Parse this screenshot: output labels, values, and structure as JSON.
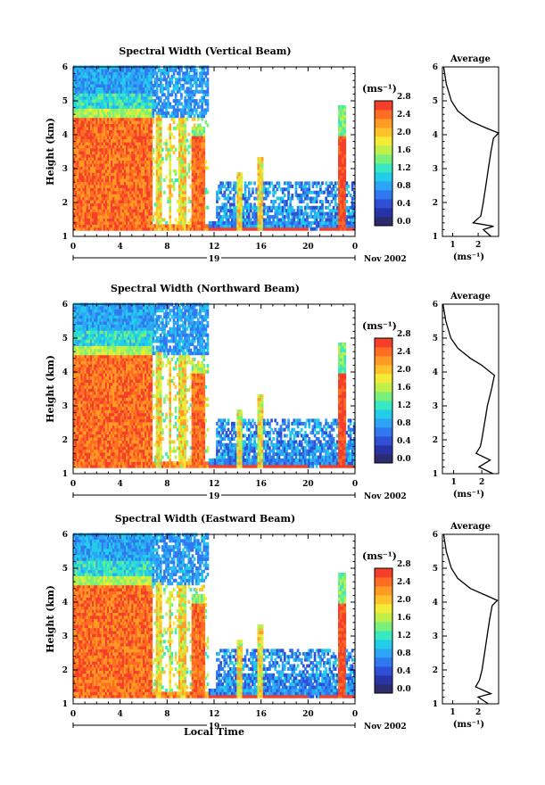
{
  "date_label": "Nov 2002",
  "day_label": "19",
  "time_label": "Local Time",
  "panels": [
    {
      "title": "Spectral Width (Vertical Beam)"
    },
    {
      "title": "Spectral Width (Northward Beam)"
    },
    {
      "title": "Spectral Width (Eastward Beam)"
    }
  ],
  "colorbar": {
    "unit": "(ms⁻¹)",
    "tick_labels": [
      "0.0",
      "0.4",
      "0.8",
      "1.2",
      "1.6",
      "2.0",
      "2.4",
      "2.8"
    ],
    "colors": [
      "#2b2b6e",
      "#2833a8",
      "#2e4fd6",
      "#2f78f0",
      "#2ea4f7",
      "#22cde8",
      "#37e8c0",
      "#79f07c",
      "#bff04a",
      "#f2ec36",
      "#ffc22a",
      "#ff9a25",
      "#ff6d22",
      "#f53f2b"
    ]
  },
  "average": {
    "title": "Average",
    "xlabel": "(ms⁻¹)",
    "xticks": [
      "1",
      "2"
    ]
  },
  "chart_data": [
    {
      "type": "heatmap",
      "title": "Spectral Width (Vertical Beam)",
      "xlabel": "Local Time",
      "ylabel": "Height (km)",
      "x_ticks": [
        "0",
        "4",
        "8",
        "12",
        "16",
        "20",
        "0"
      ],
      "y_ticks": [
        "1",
        "2",
        "3",
        "4",
        "5",
        "6"
      ],
      "xlim": [
        0,
        24
      ],
      "ylim": [
        1,
        6
      ],
      "colorscale_range": [
        0.0,
        2.8
      ],
      "colorbar_label": "(ms⁻¹)",
      "profile": {
        "title": "Average",
        "xlim": [
          0.6,
          2.8
        ],
        "height_km": [
          1.0,
          1.2,
          1.3,
          1.4,
          1.6,
          1.8,
          2.0,
          2.5,
          3.0,
          3.5,
          3.9,
          4.05,
          4.2,
          4.4,
          4.7,
          5.0,
          5.5,
          6.0
        ],
        "width_ms": [
          2.5,
          2.2,
          2.6,
          1.8,
          2.1,
          2.15,
          2.2,
          2.3,
          2.4,
          2.5,
          2.6,
          2.8,
          2.3,
          1.7,
          1.2,
          0.95,
          0.75,
          0.65
        ]
      }
    },
    {
      "type": "heatmap",
      "title": "Spectral Width (Northward Beam)",
      "xlabel": "Local Time",
      "ylabel": "Height (km)",
      "x_ticks": [
        "0",
        "4",
        "8",
        "12",
        "16",
        "20",
        "0"
      ],
      "y_ticks": [
        "1",
        "2",
        "3",
        "4",
        "5",
        "6"
      ],
      "xlim": [
        0,
        24
      ],
      "ylim": [
        1,
        6
      ],
      "colorscale_range": [
        0.0,
        2.8
      ],
      "colorbar_label": "(ms⁻¹)",
      "profile": {
        "title": "Average",
        "xlim": [
          0.6,
          2.6
        ],
        "height_km": [
          1.0,
          1.2,
          1.4,
          1.6,
          1.8,
          2.0,
          2.5,
          3.0,
          3.5,
          3.9,
          4.0,
          4.2,
          4.4,
          4.7,
          5.0,
          5.5,
          6.0
        ],
        "width_ms": [
          2.4,
          1.9,
          2.3,
          1.8,
          1.95,
          2.0,
          2.1,
          2.2,
          2.35,
          2.45,
          2.3,
          2.0,
          1.6,
          1.15,
          0.9,
          0.72,
          0.62
        ]
      }
    },
    {
      "type": "heatmap",
      "title": "Spectral Width (Eastward Beam)",
      "xlabel": "Local Time",
      "ylabel": "Height (km)",
      "x_ticks": [
        "0",
        "4",
        "8",
        "12",
        "16",
        "20",
        "0"
      ],
      "y_ticks": [
        "1",
        "2",
        "3",
        "4",
        "5",
        "6"
      ],
      "xlim": [
        0,
        24
      ],
      "ylim": [
        1,
        6
      ],
      "colorscale_range": [
        0.0,
        2.8
      ],
      "colorbar_label": "(ms⁻¹)",
      "profile": {
        "title": "Average",
        "xlim": [
          0.6,
          2.8
        ],
        "height_km": [
          1.0,
          1.2,
          1.3,
          1.5,
          1.7,
          2.0,
          2.5,
          3.0,
          3.5,
          3.9,
          4.05,
          4.2,
          4.4,
          4.7,
          5.0,
          5.5,
          6.0
        ],
        "width_ms": [
          2.4,
          2.0,
          2.5,
          1.9,
          2.05,
          2.15,
          2.25,
          2.35,
          2.45,
          2.55,
          2.75,
          2.3,
          1.7,
          1.2,
          0.95,
          0.75,
          0.65
        ]
      }
    }
  ]
}
